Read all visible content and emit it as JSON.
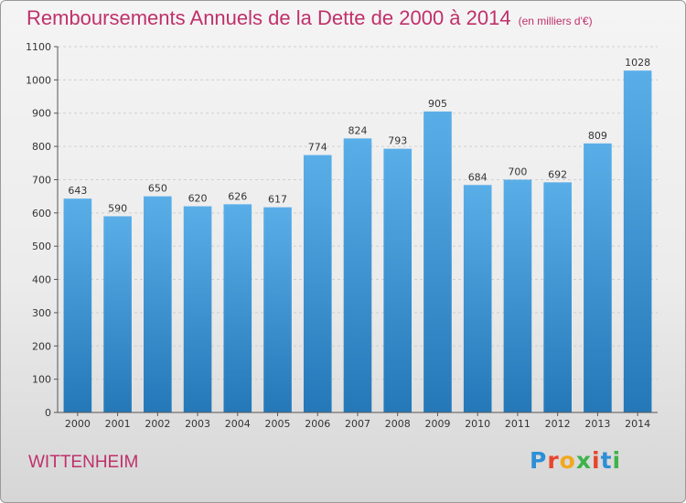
{
  "chart_data": {
    "type": "bar",
    "title": "Remboursements Annuels de la Dette de 2000 à 2014",
    "subtitle": "(en milliers d'€)",
    "xlabel": "",
    "ylabel": "",
    "categories": [
      "2000",
      "2001",
      "2002",
      "2003",
      "2004",
      "2005",
      "2006",
      "2007",
      "2008",
      "2009",
      "2010",
      "2011",
      "2012",
      "2013",
      "2014"
    ],
    "values": [
      643,
      590,
      650,
      620,
      626,
      617,
      774,
      824,
      793,
      905,
      684,
      700,
      692,
      809,
      1028
    ],
    "ylim": [
      0,
      1100
    ],
    "yticks": [
      0,
      100,
      200,
      300,
      400,
      500,
      600,
      700,
      800,
      900,
      1000,
      1100
    ],
    "grid": true,
    "legend": "none"
  },
  "footer": {
    "city": "WITTENHEIM",
    "brand": "Proxiti"
  },
  "colors": {
    "title": "#c0306a",
    "bar_light": "#5aaee8",
    "bar_dark": "#2478b8",
    "brand_letters": [
      "#2d8fd6",
      "#e8452b",
      "#f2a81d",
      "#3db34a",
      "#e8452b",
      "#2d8fd6",
      "#3db34a"
    ]
  }
}
